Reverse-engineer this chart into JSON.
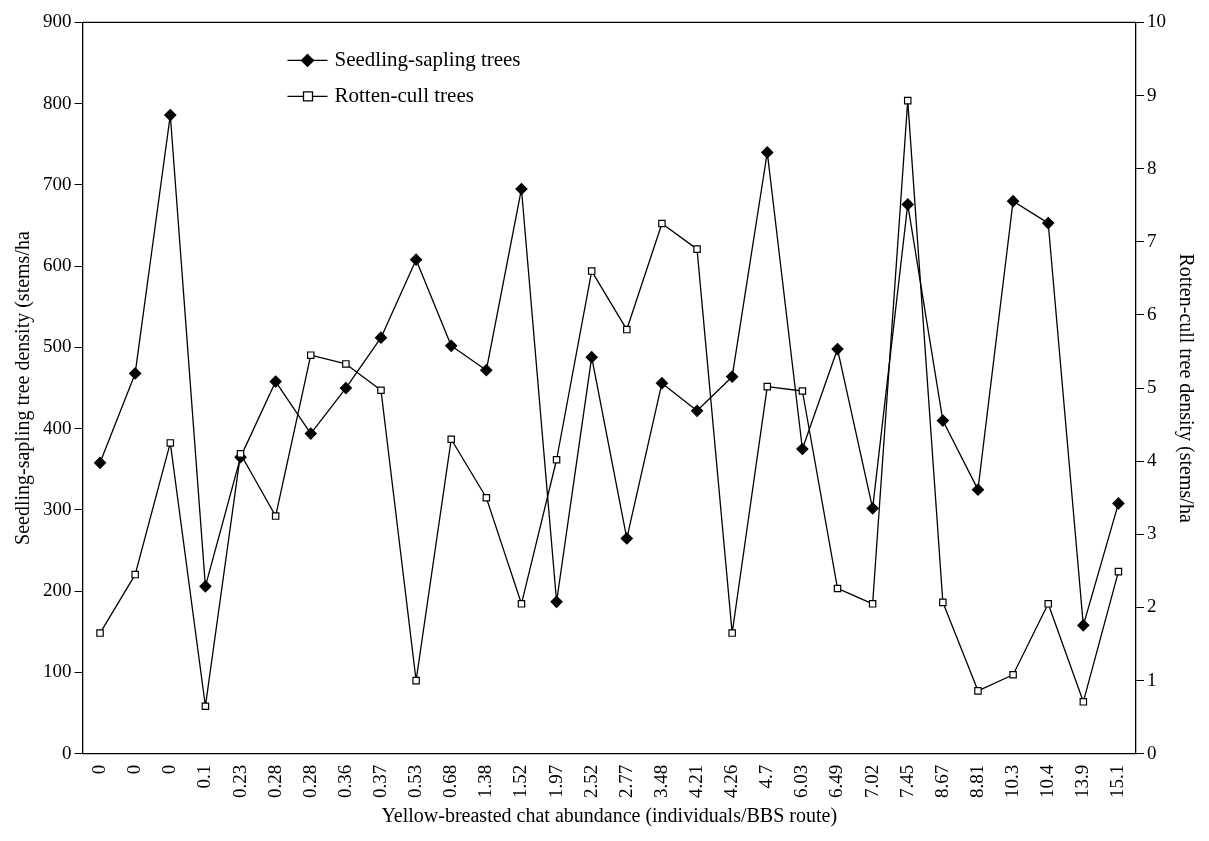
{
  "chart_data": {
    "type": "line",
    "xlabel": "Yellow-breasted chat abundance (individuals/BBS route)",
    "ylabel": "Seedling-sapling tree density (stems/ha",
    "y2label": "Rotten-cull tree density (stems/ha",
    "categories": [
      "0",
      "0",
      "0",
      "0.1",
      "0.23",
      "0.28",
      "0.28",
      "0.36",
      "0.37",
      "0.53",
      "0.68",
      "1.38",
      "1.52",
      "1.97",
      "2.52",
      "2.77",
      "3.48",
      "4.21",
      "4.26",
      "4.7",
      "6.03",
      "6.49",
      "7.02",
      "7.45",
      "8.67",
      "8.81",
      "10.3",
      "10.4",
      "13.9",
      "15.1"
    ],
    "series": [
      {
        "name": "Seedling-sapling trees",
        "color": "#000000",
        "marker": "diamond",
        "values": [
          358,
          468,
          786,
          206,
          365,
          458,
          394,
          450,
          512,
          608,
          502,
          472,
          695,
          187,
          488,
          265,
          456,
          422,
          464,
          740,
          375,
          498,
          302,
          676,
          410,
          325,
          680,
          653,
          158,
          308
        ]
      },
      {
        "name": "Rotten-cull trees",
        "color": "#000000",
        "marker": "square",
        "axis": "y2",
        "values": [
          1.65,
          2.45,
          4.25,
          0.65,
          4.1,
          3.25,
          5.45,
          5.33,
          4.97,
          1.0,
          4.3,
          3.5,
          2.05,
          4.02,
          6.6,
          5.8,
          7.25,
          6.9,
          1.65,
          5.02,
          4.96,
          2.26,
          2.05,
          8.93,
          2.07,
          0.86,
          1.08,
          2.05,
          0.71,
          2.49
        ]
      }
    ],
    "ylim": [
      0,
      900
    ],
    "yticks": [
      0,
      100,
      200,
      300,
      400,
      500,
      600,
      700,
      800,
      900
    ],
    "y2lim": [
      0,
      10
    ],
    "y2ticks": [
      0,
      1,
      2,
      3,
      4,
      5,
      6,
      7,
      8,
      9,
      10
    ],
    "grid": false,
    "legend": "top left",
    "line_style": "solid"
  }
}
